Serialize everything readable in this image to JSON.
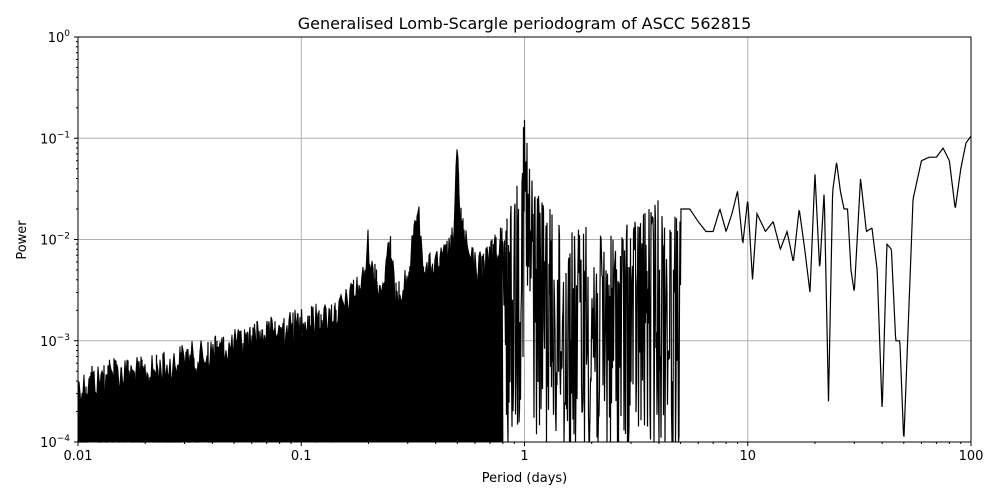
{
  "chart_data": {
    "type": "line",
    "title": "Generalised Lomb-Scargle periodogram of ASCC 562815",
    "xlabel": "Period (days)",
    "ylabel": "Power",
    "xscale": "log",
    "yscale": "log",
    "xlim": [
      0.01,
      100
    ],
    "ylim": [
      0.0001,
      1
    ],
    "grid": true,
    "legend": null,
    "x_ticks": [
      "0.01",
      "0.1",
      "1",
      "10",
      "100"
    ],
    "y_ticks": [
      "10^-4",
      "10^-3",
      "10^-2",
      "10^-1",
      "10^0"
    ],
    "notable_peaks": [
      {
        "period": 1.0,
        "power": 0.22
      },
      {
        "period": 0.5,
        "power": 0.1
      },
      {
        "period": 0.333,
        "power": 0.027
      },
      {
        "period": 0.25,
        "power": 0.012
      },
      {
        "period": 25,
        "power": 0.058
      },
      {
        "period": 32,
        "power": 0.04
      },
      {
        "period": 77,
        "power": 0.08
      },
      {
        "period": 100,
        "power": 0.105
      }
    ],
    "envelope": {
      "period": [
        0.01,
        0.012,
        0.015,
        0.02,
        0.025,
        0.03,
        0.035,
        0.04,
        0.05,
        0.06,
        0.07,
        0.08,
        0.09,
        0.1,
        0.11,
        0.13,
        0.15,
        0.17,
        0.19,
        0.2,
        0.21,
        0.23,
        0.25,
        0.26,
        0.28,
        0.3,
        0.333,
        0.36,
        0.4,
        0.45,
        0.48,
        0.5,
        0.52,
        0.56,
        0.6,
        0.65,
        0.7,
        0.75,
        0.8,
        0.85,
        0.9,
        0.95,
        1.0,
        1.05,
        1.1,
        1.2,
        1.3,
        1.4,
        1.5,
        1.7,
        1.9,
        2.0,
        2.3,
        2.6,
        3.0,
        3.3,
        3.6,
        4.0,
        4.5,
        5.0,
        5.5,
        6.0,
        6.5,
        7.0,
        7.5,
        8.0,
        8.5,
        9.0,
        9.5,
        10,
        10.5,
        11,
        12,
        13,
        14,
        15,
        16,
        17,
        18,
        19,
        20,
        21,
        22,
        23,
        24,
        25,
        26,
        27,
        28,
        29,
        30,
        32,
        34,
        36,
        38,
        40,
        42,
        44,
        46,
        48,
        50,
        55,
        60,
        65,
        70,
        75,
        80,
        85,
        90,
        95,
        100
      ],
      "power": [
        0.0005,
        0.0006,
        0.0007,
        0.0007,
        0.0008,
        0.001,
        0.001,
        0.0011,
        0.0013,
        0.0015,
        0.0017,
        0.0019,
        0.002,
        0.0022,
        0.0023,
        0.0025,
        0.003,
        0.004,
        0.006,
        0.014,
        0.006,
        0.005,
        0.012,
        0.005,
        0.005,
        0.006,
        0.027,
        0.007,
        0.008,
        0.01,
        0.015,
        0.1,
        0.02,
        0.01,
        0.008,
        0.008,
        0.01,
        0.012,
        0.015,
        0.018,
        0.03,
        0.05,
        0.22,
        0.06,
        0.04,
        0.025,
        0.02,
        0.015,
        0.012,
        0.012,
        0.015,
        0.012,
        0.01,
        0.012,
        0.015,
        0.018,
        0.02,
        0.025,
        0.015,
        0.02,
        0.02,
        0.015,
        0.012,
        0.012,
        0.02,
        0.012,
        0.018,
        0.03,
        0.009,
        0.025,
        0.004,
        0.018,
        0.012,
        0.015,
        0.008,
        0.012,
        0.006,
        0.02,
        0.008,
        0.003,
        0.045,
        0.005,
        0.03,
        0.00025,
        0.03,
        0.058,
        0.03,
        0.02,
        0.02,
        0.005,
        0.003,
        0.04,
        0.012,
        0.013,
        0.005,
        0.0002,
        0.009,
        0.008,
        0.001,
        0.001,
        0.0001,
        0.025,
        0.06,
        0.065,
        0.065,
        0.08,
        0.06,
        0.02,
        0.05,
        0.09,
        0.105
      ]
    }
  }
}
